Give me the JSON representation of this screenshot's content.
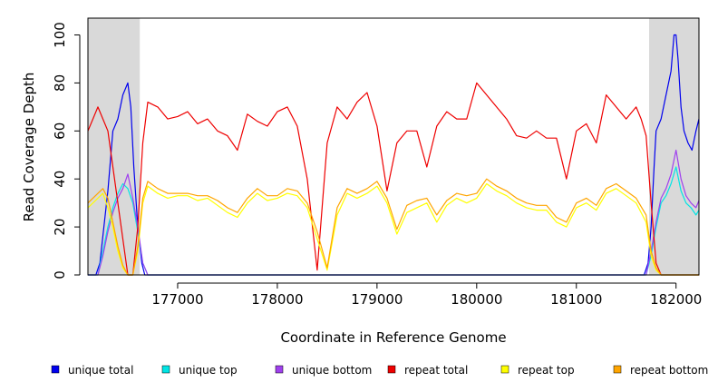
{
  "chart_data": {
    "type": "line",
    "title": "",
    "xlabel": "Coordinate in Reference Genome",
    "ylabel": "Read Coverage Depth",
    "xlim": [
      176100,
      182230
    ],
    "ylim": [
      0,
      107
    ],
    "xticks": [
      177000,
      178000,
      179000,
      180000,
      181000,
      182000
    ],
    "xtick_labels": [
      "177000",
      "178000",
      "179000",
      "180000",
      "181000",
      "182000"
    ],
    "yticks": [
      0,
      20,
      40,
      60,
      80,
      100
    ],
    "ytick_labels": [
      "0",
      "20",
      "40",
      "60",
      "80",
      "100"
    ],
    "shaded_regions": [
      {
        "x0": 176100,
        "x1": 176620,
        "color": "#d9d9d9"
      },
      {
        "x0": 181730,
        "x1": 182230,
        "color": "#d9d9d9"
      }
    ],
    "legend_position": "bottom",
    "series": [
      {
        "name": "unique total",
        "color": "#0000ee",
        "x": [
          176100,
          176150,
          176180,
          176220,
          176260,
          176300,
          176350,
          176400,
          176450,
          176500,
          176530,
          176560,
          176600,
          176640,
          176670,
          176700,
          177000,
          178000,
          179000,
          180000,
          181000,
          181600,
          181680,
          181720,
          181750,
          181780,
          181800,
          181850,
          181900,
          181950,
          181980,
          182000,
          182020,
          182050,
          182080,
          182120,
          182160,
          182200,
          182230
        ],
        "y": [
          0,
          0,
          0,
          5,
          20,
          35,
          60,
          65,
          75,
          80,
          70,
          45,
          20,
          5,
          0,
          0,
          0,
          0,
          0,
          0,
          0,
          0,
          0,
          5,
          20,
          45,
          60,
          65,
          75,
          85,
          100,
          100,
          90,
          70,
          60,
          55,
          52,
          60,
          65
        ]
      },
      {
        "name": "unique top",
        "color": "#00e5e5",
        "x": [
          176100,
          176200,
          176250,
          176300,
          176350,
          176400,
          176450,
          176500,
          176550,
          176600,
          176650,
          176700,
          177000,
          180000,
          181700,
          181750,
          181800,
          181850,
          181900,
          181950,
          182000,
          182050,
          182100,
          182150,
          182200,
          182230
        ],
        "y": [
          0,
          0,
          10,
          20,
          28,
          34,
          38,
          36,
          30,
          18,
          5,
          0,
          0,
          0,
          0,
          8,
          20,
          30,
          33,
          38,
          45,
          35,
          30,
          28,
          25,
          27
        ]
      },
      {
        "name": "unique bottom",
        "color": "#a040ee",
        "x": [
          176100,
          176200,
          176250,
          176300,
          176350,
          176400,
          176450,
          176500,
          176550,
          176600,
          176650,
          176700,
          177000,
          180000,
          181700,
          181750,
          181800,
          181850,
          181900,
          181950,
          182000,
          182050,
          182100,
          182150,
          182200,
          182230
        ],
        "y": [
          0,
          0,
          8,
          18,
          26,
          32,
          36,
          42,
          32,
          20,
          5,
          0,
          0,
          0,
          0,
          10,
          22,
          32,
          36,
          42,
          52,
          40,
          33,
          30,
          28,
          31
        ]
      },
      {
        "name": "repeat total",
        "color": "#ee0000",
        "x": [
          176100,
          176150,
          176200,
          176250,
          176300,
          176350,
          176400,
          176450,
          176500,
          176550,
          176600,
          176650,
          176700,
          176800,
          176900,
          177000,
          177100,
          177200,
          177300,
          177400,
          177500,
          177600,
          177700,
          177800,
          177900,
          178000,
          178100,
          178200,
          178300,
          178400,
          178500,
          178600,
          178700,
          178800,
          178900,
          179000,
          179100,
          179200,
          179300,
          179400,
          179500,
          179600,
          179700,
          179800,
          179900,
          180000,
          180100,
          180200,
          180300,
          180400,
          180500,
          180600,
          180700,
          180800,
          180900,
          181000,
          181100,
          181200,
          181300,
          181400,
          181500,
          181600,
          181650,
          181700,
          181750,
          181800,
          181850,
          181900,
          182000,
          182100,
          182230
        ],
        "y": [
          60,
          65,
          70,
          65,
          60,
          45,
          30,
          15,
          0,
          0,
          20,
          55,
          72,
          70,
          65,
          66,
          68,
          63,
          65,
          60,
          58,
          52,
          67,
          64,
          62,
          68,
          70,
          62,
          40,
          2,
          55,
          70,
          65,
          72,
          76,
          62,
          35,
          55,
          60,
          60,
          45,
          62,
          68,
          65,
          65,
          80,
          75,
          70,
          65,
          58,
          57,
          60,
          57,
          57,
          40,
          60,
          63,
          55,
          75,
          70,
          65,
          70,
          65,
          58,
          30,
          5,
          0,
          0,
          0,
          0,
          0
        ]
      },
      {
        "name": "repeat top",
        "color": "#ffff00",
        "x": [
          176100,
          176200,
          176250,
          176300,
          176350,
          176400,
          176450,
          176500,
          176550,
          176600,
          176650,
          176700,
          176800,
          176900,
          177000,
          177100,
          177200,
          177300,
          177400,
          177500,
          177600,
          177700,
          177800,
          177900,
          178000,
          178100,
          178200,
          178300,
          178400,
          178500,
          178600,
          178700,
          178800,
          178900,
          179000,
          179100,
          179200,
          179300,
          179400,
          179500,
          179600,
          179700,
          179800,
          179900,
          180000,
          180100,
          180200,
          180300,
          180400,
          180500,
          180600,
          180700,
          180800,
          180900,
          181000,
          181100,
          181200,
          181300,
          181400,
          181500,
          181600,
          181700,
          181750,
          181800,
          181850,
          181900,
          182000,
          182230
        ],
        "y": [
          28,
          32,
          34,
          28,
          20,
          10,
          3,
          0,
          0,
          10,
          30,
          37,
          34,
          32,
          33,
          33,
          31,
          32,
          29,
          26,
          24,
          30,
          34,
          31,
          32,
          34,
          33,
          28,
          15,
          2,
          25,
          34,
          32,
          34,
          37,
          30,
          17,
          26,
          28,
          30,
          22,
          29,
          32,
          30,
          32,
          38,
          35,
          33,
          30,
          28,
          27,
          27,
          22,
          20,
          28,
          30,
          27,
          34,
          36,
          33,
          30,
          22,
          8,
          2,
          0,
          0,
          0,
          0
        ]
      },
      {
        "name": "repeat bottom",
        "color": "#ffa500",
        "x": [
          176100,
          176200,
          176250,
          176300,
          176350,
          176400,
          176450,
          176500,
          176550,
          176600,
          176650,
          176700,
          176800,
          176900,
          177000,
          177100,
          177200,
          177300,
          177400,
          177500,
          177600,
          177700,
          177800,
          177900,
          178000,
          178100,
          178200,
          178300,
          178400,
          178500,
          178600,
          178700,
          178800,
          178900,
          179000,
          179100,
          179200,
          179300,
          179400,
          179500,
          179600,
          179700,
          179800,
          179900,
          180000,
          180100,
          180200,
          180300,
          180400,
          180500,
          180600,
          180700,
          180800,
          180900,
          181000,
          181100,
          181200,
          181300,
          181400,
          181500,
          181600,
          181700,
          181750,
          181800,
          181850,
          181900,
          182000,
          182230
        ],
        "y": [
          30,
          34,
          36,
          32,
          22,
          12,
          4,
          0,
          0,
          12,
          32,
          39,
          36,
          34,
          34,
          34,
          33,
          33,
          31,
          28,
          26,
          32,
          36,
          33,
          33,
          36,
          35,
          30,
          18,
          3,
          28,
          36,
          34,
          36,
          39,
          32,
          19,
          29,
          31,
          32,
          25,
          31,
          34,
          33,
          34,
          40,
          37,
          35,
          32,
          30,
          29,
          29,
          24,
          22,
          30,
          32,
          29,
          36,
          38,
          35,
          32,
          25,
          10,
          3,
          0,
          0,
          0,
          0
        ]
      }
    ]
  }
}
